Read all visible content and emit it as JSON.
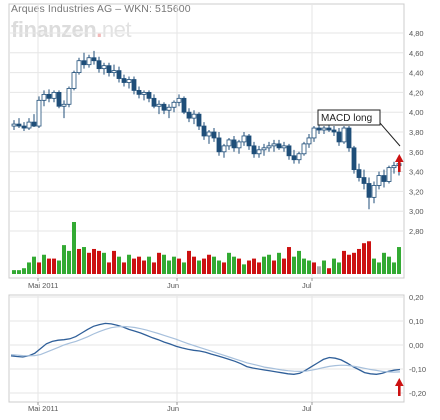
{
  "header": {
    "title": "Arques Industries AG – WKN: 515600",
    "logo_main": "finanzen",
    "logo_dot": ".",
    "logo_tld": "net"
  },
  "annotation": {
    "label": "MACD long"
  },
  "colors": {
    "up_candle": "#ffffff",
    "down_candle": "#1f4e79",
    "volume_up": "#33aa33",
    "volume_down": "#cc1111",
    "volume_flat": "#aaaaaa",
    "macd_line": "#2f5f99",
    "signal_line": "#a7c0dc",
    "signal_arrow": "#cc1111",
    "grid": "#e6e6e6"
  },
  "chart_data": [
    {
      "type": "candlestick",
      "title": "Arques Industries AG – WKN: 515600",
      "y_ticks": [
        "4,80",
        "4,60",
        "4,40",
        "4,20",
        "4,00",
        "3,80",
        "3,60",
        "3,40",
        "3,20",
        "3,00",
        "2,80"
      ],
      "x_ticks": [
        "Mai 2011",
        "Jun",
        "Jul"
      ],
      "ylim": [
        2.6,
        4.86
      ],
      "grid": true,
      "ohlc": [
        [
          3.86,
          3.92,
          3.82,
          3.88
        ],
        [
          3.88,
          3.94,
          3.84,
          3.86
        ],
        [
          3.86,
          3.9,
          3.81,
          3.84
        ],
        [
          3.84,
          3.94,
          3.82,
          3.9
        ],
        [
          3.9,
          3.98,
          3.85,
          3.86
        ],
        [
          3.86,
          4.16,
          3.84,
          4.12
        ],
        [
          4.12,
          4.22,
          4.06,
          4.18
        ],
        [
          4.18,
          4.23,
          4.1,
          4.14
        ],
        [
          4.14,
          4.22,
          4.1,
          4.2
        ],
        [
          4.2,
          4.22,
          4.04,
          4.06
        ],
        [
          4.06,
          4.12,
          3.94,
          4.08
        ],
        [
          4.08,
          4.26,
          4.05,
          4.24
        ],
        [
          4.24,
          4.42,
          4.22,
          4.4
        ],
        [
          4.4,
          4.55,
          4.38,
          4.52
        ],
        [
          4.52,
          4.6,
          4.44,
          4.48
        ],
        [
          4.48,
          4.58,
          4.45,
          4.55
        ],
        [
          4.55,
          4.62,
          4.48,
          4.52
        ],
        [
          4.52,
          4.56,
          4.4,
          4.44
        ],
        [
          4.44,
          4.5,
          4.38,
          4.47
        ],
        [
          4.47,
          4.5,
          4.36,
          4.4
        ],
        [
          4.4,
          4.48,
          4.36,
          4.42
        ],
        [
          4.42,
          4.46,
          4.3,
          4.34
        ],
        [
          4.34,
          4.38,
          4.26,
          4.3
        ],
        [
          4.3,
          4.36,
          4.24,
          4.33
        ],
        [
          4.33,
          4.36,
          4.18,
          4.22
        ],
        [
          4.22,
          4.26,
          4.14,
          4.18
        ],
        [
          4.18,
          4.22,
          4.12,
          4.2
        ],
        [
          4.2,
          4.22,
          4.1,
          4.14
        ],
        [
          4.14,
          4.18,
          4.04,
          4.06
        ],
        [
          4.06,
          4.12,
          3.98,
          4.08
        ],
        [
          4.08,
          4.1,
          3.98,
          4.02
        ],
        [
          4.02,
          4.08,
          3.94,
          4.05
        ],
        [
          4.05,
          4.12,
          4.0,
          4.1
        ],
        [
          4.1,
          4.18,
          4.06,
          4.14
        ],
        [
          4.14,
          4.16,
          3.98,
          4.0
        ],
        [
          4.0,
          4.04,
          3.9,
          3.94
        ],
        [
          3.94,
          4.02,
          3.88,
          3.98
        ],
        [
          3.98,
          4.0,
          3.82,
          3.86
        ],
        [
          3.86,
          3.9,
          3.72,
          3.76
        ],
        [
          3.76,
          3.82,
          3.68,
          3.8
        ],
        [
          3.8,
          3.84,
          3.7,
          3.74
        ],
        [
          3.74,
          3.8,
          3.56,
          3.6
        ],
        [
          3.6,
          3.68,
          3.54,
          3.66
        ],
        [
          3.66,
          3.74,
          3.62,
          3.72
        ],
        [
          3.72,
          3.76,
          3.6,
          3.64
        ],
        [
          3.64,
          3.72,
          3.58,
          3.7
        ],
        [
          3.7,
          3.8,
          3.66,
          3.76
        ],
        [
          3.76,
          3.78,
          3.62,
          3.66
        ],
        [
          3.66,
          3.7,
          3.54,
          3.58
        ],
        [
          3.58,
          3.66,
          3.54,
          3.62
        ],
        [
          3.62,
          3.68,
          3.56,
          3.64
        ],
        [
          3.64,
          3.7,
          3.6,
          3.66
        ],
        [
          3.66,
          3.72,
          3.6,
          3.68
        ],
        [
          3.68,
          3.72,
          3.62,
          3.64
        ],
        [
          3.64,
          3.7,
          3.6,
          3.66
        ],
        [
          3.66,
          3.68,
          3.52,
          3.56
        ],
        [
          3.56,
          3.62,
          3.48,
          3.52
        ],
        [
          3.52,
          3.6,
          3.48,
          3.58
        ],
        [
          3.58,
          3.7,
          3.56,
          3.68
        ],
        [
          3.68,
          3.78,
          3.64,
          3.74
        ],
        [
          3.74,
          3.86,
          3.7,
          3.84
        ],
        [
          3.84,
          3.88,
          3.78,
          3.82
        ],
        [
          3.82,
          3.86,
          3.78,
          3.84
        ],
        [
          3.84,
          3.88,
          3.8,
          3.82
        ],
        [
          3.82,
          3.86,
          3.76,
          3.8
        ],
        [
          3.8,
          3.84,
          3.66,
          3.7
        ],
        [
          3.7,
          3.86,
          3.68,
          3.84
        ],
        [
          3.84,
          3.86,
          3.6,
          3.64
        ],
        [
          3.64,
          3.66,
          3.38,
          3.42
        ],
        [
          3.42,
          3.48,
          3.3,
          3.34
        ],
        [
          3.34,
          3.42,
          3.22,
          3.28
        ],
        [
          3.28,
          3.34,
          3.02,
          3.14
        ],
        [
          3.14,
          3.3,
          3.08,
          3.26
        ],
        [
          3.26,
          3.4,
          3.22,
          3.36
        ],
        [
          3.36,
          3.42,
          3.24,
          3.3
        ],
        [
          3.3,
          3.46,
          3.28,
          3.44
        ],
        [
          3.44,
          3.5,
          3.38,
          3.46
        ],
        [
          3.46,
          3.52,
          3.36,
          3.48
        ]
      ],
      "volume": [
        2,
        2,
        3,
        6,
        9,
        6,
        10,
        8,
        8,
        7,
        15,
        12,
        27,
        13,
        14,
        11,
        13,
        12,
        11,
        6,
        12,
        9,
        6,
        10,
        8,
        9,
        7,
        9,
        6,
        11,
        10,
        7,
        9,
        8,
        6,
        12,
        9,
        7,
        8,
        10,
        9,
        7,
        6,
        11,
        9,
        8,
        5,
        7,
        8,
        6,
        9,
        10,
        7,
        11,
        8,
        14,
        9,
        12,
        8,
        7,
        6,
        4,
        7,
        3,
        8,
        6,
        12,
        10,
        11,
        13,
        16,
        17,
        8,
        6,
        11,
        9,
        6,
        14
      ],
      "volume_dir": [
        "u",
        "u",
        "u",
        "u",
        "u",
        "d",
        "u",
        "d",
        "d",
        "u",
        "u",
        "u",
        "u",
        "d",
        "u",
        "d",
        "d",
        "d",
        "u",
        "d",
        "d",
        "u",
        "d",
        "u",
        "d",
        "d",
        "d",
        "u",
        "d",
        "d",
        "u",
        "u",
        "u",
        "d",
        "u",
        "d",
        "d",
        "u",
        "d",
        "d",
        "u",
        "u",
        "d",
        "u",
        "u",
        "d",
        "u",
        "d",
        "d",
        "d",
        "u",
        "u",
        "d",
        "u",
        "d",
        "d",
        "u",
        "u",
        "u",
        "u",
        "d",
        "f",
        "u",
        "d",
        "u",
        "u",
        "d",
        "d",
        "d",
        "d",
        "d",
        "d",
        "u",
        "u",
        "u",
        "u",
        "u",
        "u"
      ]
    },
    {
      "type": "line",
      "name": "MACD",
      "y_ticks": [
        "0,20",
        "0,10",
        "0,00",
        "-0,10",
        "-0,20"
      ],
      "x_ticks": [
        "Mai 2011",
        "Jun",
        "Jul"
      ],
      "ylim": [
        -0.2,
        0.2
      ],
      "grid": true,
      "series": [
        {
          "values": [
            -0.045,
            -0.048,
            -0.05,
            -0.045,
            -0.035,
            -0.015,
            0.005,
            0.015,
            0.02,
            0.022,
            0.026,
            0.035,
            0.05,
            0.065,
            0.078,
            0.085,
            0.09,
            0.088,
            0.082,
            0.075,
            0.065,
            0.058,
            0.05,
            0.04,
            0.03,
            0.022,
            0.012,
            0.004,
            -0.005,
            -0.012,
            -0.018,
            -0.022,
            -0.025,
            -0.03,
            -0.038,
            -0.045,
            -0.052,
            -0.06,
            -0.068,
            -0.078,
            -0.09,
            -0.096,
            -0.1,
            -0.104,
            -0.108,
            -0.112,
            -0.116,
            -0.12,
            -0.122,
            -0.118,
            -0.105,
            -0.09,
            -0.075,
            -0.06,
            -0.052,
            -0.055,
            -0.062,
            -0.075,
            -0.09,
            -0.102,
            -0.115,
            -0.12,
            -0.122,
            -0.118,
            -0.11,
            -0.105,
            -0.102
          ]
        },
        {
          "values": [
            -0.04,
            -0.042,
            -0.044,
            -0.045,
            -0.044,
            -0.04,
            -0.03,
            -0.02,
            -0.01,
            0.0,
            0.008,
            0.015,
            0.024,
            0.034,
            0.046,
            0.056,
            0.065,
            0.072,
            0.076,
            0.077,
            0.076,
            0.073,
            0.068,
            0.062,
            0.055,
            0.048,
            0.04,
            0.032,
            0.024,
            0.015,
            0.006,
            -0.002,
            -0.01,
            -0.018,
            -0.026,
            -0.034,
            -0.042,
            -0.05,
            -0.058,
            -0.066,
            -0.074,
            -0.08,
            -0.086,
            -0.092,
            -0.096,
            -0.1,
            -0.104,
            -0.107,
            -0.109,
            -0.11,
            -0.109,
            -0.105,
            -0.1,
            -0.094,
            -0.089,
            -0.086,
            -0.084,
            -0.085,
            -0.088,
            -0.092,
            -0.097,
            -0.102,
            -0.106,
            -0.11,
            -0.112,
            -0.113,
            -0.112
          ]
        }
      ]
    }
  ]
}
